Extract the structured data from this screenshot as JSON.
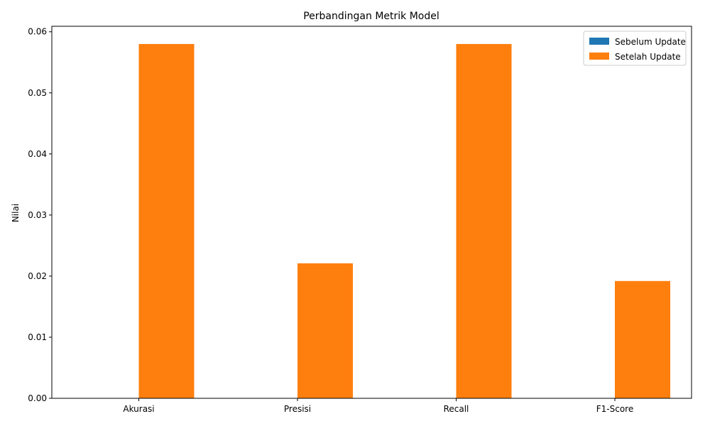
{
  "chart_data": {
    "type": "bar",
    "title": "Perbandingan Metrik Model",
    "xlabel": "",
    "ylabel": "Nilai",
    "categories": [
      "Akurasi",
      "Presisi",
      "Recall",
      "F1-Score"
    ],
    "series": [
      {
        "name": "Sebelum Update",
        "color": "#1f77b4",
        "values": [
          0.0,
          0.0,
          0.0,
          0.0
        ]
      },
      {
        "name": "Setelah Update",
        "color": "#ff7f0e",
        "values": [
          0.058,
          0.0221,
          0.058,
          0.0192
        ]
      }
    ],
    "ylim": [
      0,
      0.0609
    ],
    "yticks": [
      "0.00",
      "0.01",
      "0.02",
      "0.03",
      "0.04",
      "0.05",
      "0.06"
    ],
    "grid": false,
    "legend_position": "top-right"
  }
}
